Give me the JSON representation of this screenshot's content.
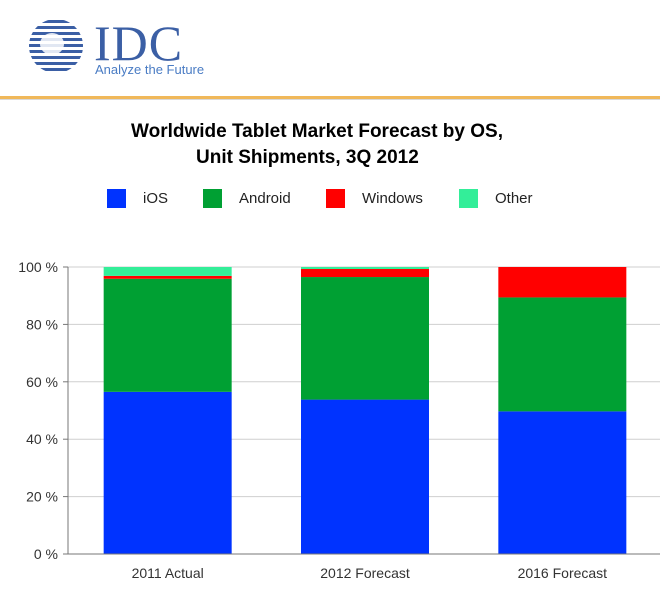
{
  "header": {
    "logo_text": "IDC",
    "tagline": "Analyze the Future"
  },
  "colors": {
    "ios": "#0033ff",
    "android": "#00a033",
    "windows": "#ff0000",
    "other": "#33ee99",
    "header_rule": "#f0b85a"
  },
  "chart_data": {
    "type": "bar",
    "stacked": true,
    "title": "Worldwide Tablet Market Forecast by OS,",
    "subtitle": "Unit Shipments, 3Q 2012",
    "categories": [
      "2011 Actual",
      "2012 Forecast",
      "2016 Forecast"
    ],
    "series": [
      {
        "name": "iOS",
        "values": [
          56.5,
          53.8,
          49.7
        ]
      },
      {
        "name": "Android",
        "values": [
          39.4,
          42.7,
          39.7
        ]
      },
      {
        "name": "Windows",
        "values": [
          1.0,
          2.8,
          10.6
        ]
      },
      {
        "name": "Other",
        "values": [
          3.1,
          0.7,
          0.0
        ]
      }
    ],
    "ylim": [
      0,
      100
    ],
    "yticks": [
      "0 %",
      "20 %",
      "40 %",
      "60 %",
      "80 %",
      "100 %"
    ],
    "grid": true,
    "legend_position": "top"
  }
}
